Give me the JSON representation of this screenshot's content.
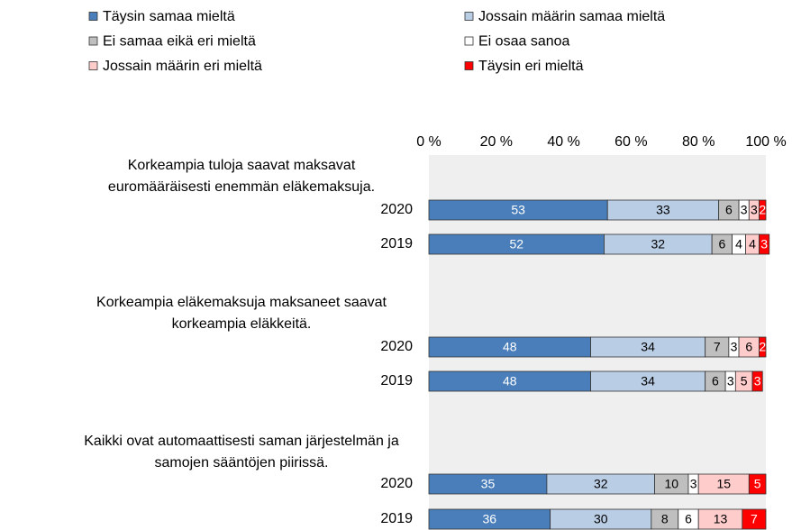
{
  "chart_data": {
    "type": "stacked-barh",
    "groups": [
      {
        "label": [
          "Korkeampia tuloja saavat maksavat",
          "euromääräisesti enemmän eläkemaksuja."
        ],
        "categories": [
          0,
          1
        ]
      },
      {
        "label": [
          "Korkeampia eläkemaksuja maksaneet saavat",
          "korkeampia eläkkeitä."
        ],
        "categories": [
          2,
          3
        ]
      },
      {
        "label": [
          "Kaikki ovat automaattisesti saman järjestelmän ja",
          "samojen sääntöjen piirissä."
        ],
        "categories": [
          4,
          5
        ]
      }
    ],
    "categories": [
      "2020",
      "2019",
      "2020",
      "2019",
      "2020",
      "2019"
    ],
    "series": [
      {
        "name": "Täysin samaa mieltä",
        "color": "#4a7ebb",
        "label_color": "#ffffff",
        "values": [
          53,
          52,
          48,
          48,
          35,
          36
        ]
      },
      {
        "name": "Jossain määrin samaa mieltä",
        "color": "#b9cde5",
        "label_color": "#000000",
        "values": [
          33,
          32,
          34,
          34,
          32,
          30
        ]
      },
      {
        "name": "Ei samaa eikä eri mieltä",
        "color": "#bfbfbf",
        "label_color": "#000000",
        "values": [
          6,
          6,
          7,
          6,
          10,
          8
        ]
      },
      {
        "name": "Ei osaa sanoa",
        "color": "#ffffff",
        "label_color": "#000000",
        "values": [
          3,
          4,
          3,
          3,
          3,
          6
        ]
      },
      {
        "name": "Jossain määrin eri mieltä",
        "color": "#ffcccc",
        "label_color": "#000000",
        "values": [
          3,
          4,
          6,
          5,
          15,
          13
        ]
      },
      {
        "name": "Täysin eri mieltä",
        "color": "#ff0000",
        "label_color": "#ffffff",
        "values": [
          2,
          3,
          2,
          3,
          5,
          7
        ]
      }
    ],
    "xlim": [
      0,
      100
    ],
    "xticks": [
      {
        "value": 0,
        "label": "0 %"
      },
      {
        "value": 20,
        "label": "20 %"
      },
      {
        "value": 40,
        "label": "40 %"
      },
      {
        "value": 60,
        "label": "60 %"
      },
      {
        "value": 80,
        "label": "80 %"
      },
      {
        "value": 100,
        "label": "100 %"
      }
    ],
    "legend": "top"
  }
}
